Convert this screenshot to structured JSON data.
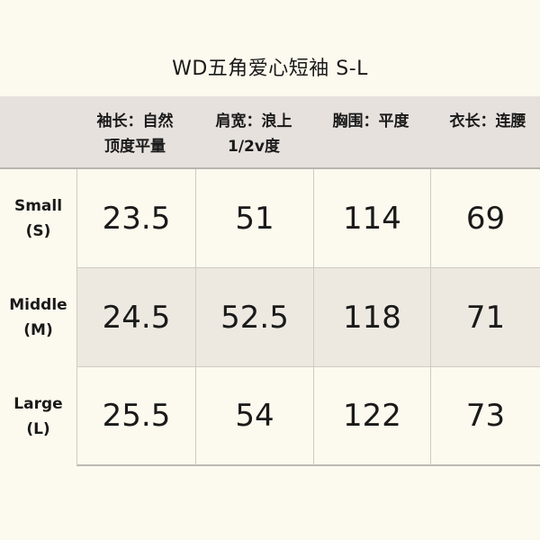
{
  "title": "WD五角爱心短袖 S-L",
  "columns": [
    {
      "line1": "袖长：自然",
      "line2": "顶度平量"
    },
    {
      "line1": "肩宽：浪上",
      "line2": "1/2v度"
    },
    {
      "line1": "胸围：平度",
      "line2": ""
    },
    {
      "line1": "衣长：连腰",
      "line2": ""
    }
  ],
  "rows": [
    {
      "name": "Small",
      "code": "(S)",
      "values": [
        "23.5",
        "51",
        "114",
        "69"
      ]
    },
    {
      "name": "Middle",
      "code": "(M)",
      "values": [
        "24.5",
        "52.5",
        "118",
        "71"
      ]
    },
    {
      "name": "Large",
      "code": "(L)",
      "values": [
        "25.5",
        "54",
        "122",
        "73"
      ]
    }
  ],
  "colors": {
    "background": "#fcf9ee",
    "header": "#e6e1dd",
    "alt_row": "#ede9e1"
  }
}
